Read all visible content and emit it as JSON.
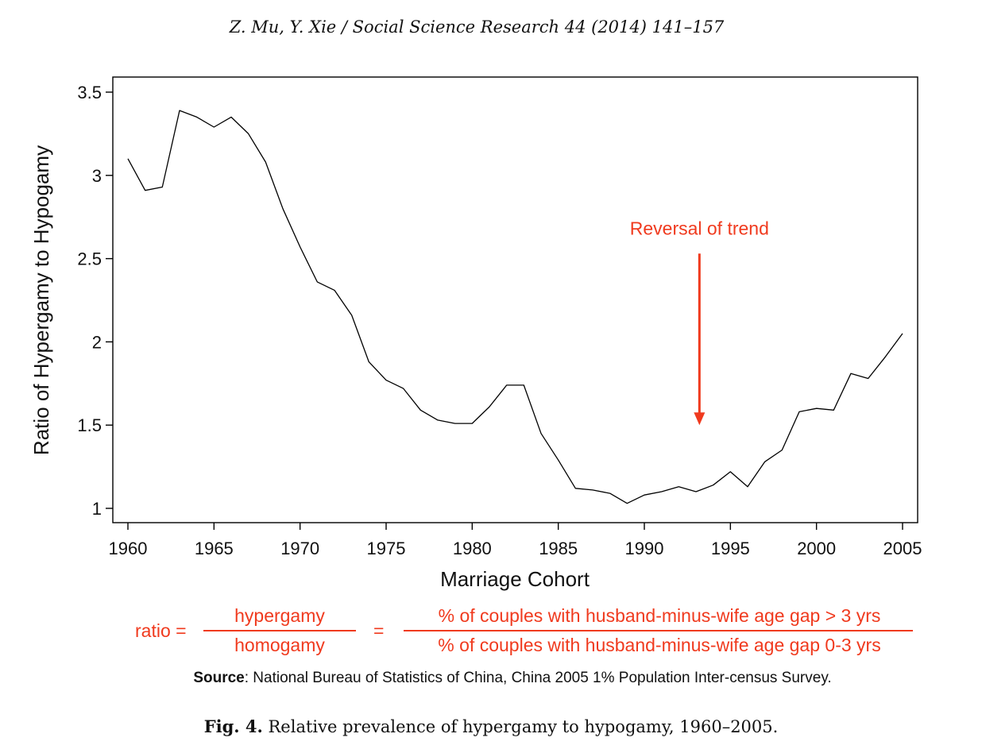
{
  "header": {
    "citation": "Z. Mu, Y. Xie / Social Science Research 44 (2014) 141–157"
  },
  "chart_data": {
    "type": "line",
    "xlabel": "Marriage Cohort",
    "ylabel": "Ratio of Hypergamy to Hypogamy",
    "xlim": [
      1960,
      2005
    ],
    "ylim": [
      1,
      3.5
    ],
    "xticks": [
      1960,
      1965,
      1970,
      1975,
      1980,
      1985,
      1990,
      1995,
      2000,
      2005
    ],
    "yticks": [
      1,
      1.5,
      2,
      2.5,
      3,
      3.5
    ],
    "ytick_labels": [
      "1",
      "1.5",
      "2",
      "2.5",
      "3",
      "3.5"
    ],
    "grid": false,
    "series": [
      {
        "color": "#000000",
        "x": [
          1960,
          1961,
          1962,
          1963,
          1964,
          1965,
          1966,
          1967,
          1968,
          1969,
          1970,
          1971,
          1972,
          1973,
          1974,
          1975,
          1976,
          1977,
          1978,
          1979,
          1980,
          1981,
          1982,
          1983,
          1984,
          1985,
          1986,
          1987,
          1988,
          1989,
          1990,
          1991,
          1992,
          1993,
          1994,
          1995,
          1996,
          1997,
          1998,
          1999,
          2000,
          2001,
          2002,
          2003,
          2004,
          2005
        ],
        "y": [
          3.1,
          2.91,
          2.93,
          3.39,
          3.35,
          3.29,
          3.35,
          3.25,
          3.08,
          2.8,
          2.57,
          2.36,
          2.31,
          2.16,
          1.88,
          1.77,
          1.72,
          1.59,
          1.53,
          1.51,
          1.51,
          1.61,
          1.74,
          1.74,
          1.45,
          1.29,
          1.12,
          1.11,
          1.09,
          1.03,
          1.08,
          1.1,
          1.13,
          1.1,
          1.14,
          1.22,
          1.13,
          1.28,
          1.35,
          1.58,
          1.6,
          1.59,
          1.81,
          1.78,
          1.91,
          2.05
        ]
      }
    ],
    "annotation": {
      "text": "Reversal of trend",
      "x": 1993.2,
      "y_from": 2.53,
      "y_to": 1.5,
      "color": "#f03a1e"
    }
  },
  "formula": {
    "lhs": "ratio =",
    "num1": "hypergamy",
    "den1": "homogamy",
    "eq": "=",
    "num2": "% of couples with husband-minus-wife age gap > 3 yrs",
    "den2": "% of couples with husband-minus-wife age gap 0-3 yrs",
    "color": "#f03a1e"
  },
  "source": {
    "label": "Source",
    "text": ": National Bureau of Statistics of China, China 2005 1% Population Inter-census Survey."
  },
  "caption": {
    "label": "Fig. 4.",
    "text": " Relative prevalence of hypergamy to hypogamy, 1960–2005."
  }
}
